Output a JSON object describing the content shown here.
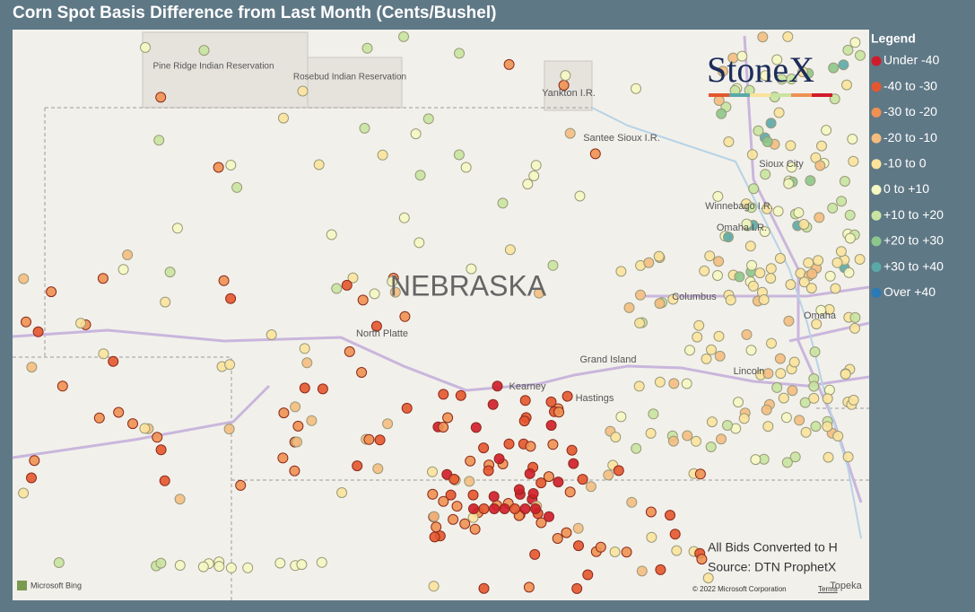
{
  "header": {
    "title": "Corn Spot Basis Difference from Last Month (Cents/Bushel)"
  },
  "map": {
    "labels": [
      {
        "text": "Pine Ridge Indian Reservation"
      },
      {
        "text": "Rosebud Indian Reservation"
      },
      {
        "text": "Yankton I.R."
      },
      {
        "text": "Santee Sioux I.R."
      },
      {
        "text": "Sioux City"
      },
      {
        "text": "Winnebago I.R."
      },
      {
        "text": "Omaha I.R."
      },
      {
        "text": "NEBRASKA"
      },
      {
        "text": "North Platte"
      },
      {
        "text": "Columbus"
      },
      {
        "text": "Omaha"
      },
      {
        "text": "Grand Island"
      },
      {
        "text": "Kearney"
      },
      {
        "text": "Hastings"
      },
      {
        "text": "Lincoln"
      },
      {
        "text": "Topeka"
      }
    ]
  },
  "legend": {
    "title": "Legend",
    "items": [
      {
        "label": "Under -40",
        "color": "#d01c2a"
      },
      {
        "label": "-40 to -30",
        "color": "#e4572e"
      },
      {
        "label": "-30 to -20",
        "color": "#ef9152"
      },
      {
        "label": "-20 to -10",
        "color": "#f4bd7f"
      },
      {
        "label": "-10 to 0",
        "color": "#fbe39c"
      },
      {
        "label": "0 to +10",
        "color": "#f5f8c2"
      },
      {
        "label": "+10 to +20",
        "color": "#c8e4a0"
      },
      {
        "label": "+20 to +30",
        "color": "#8dc78b"
      },
      {
        "label": "+30 to +40",
        "color": "#5aa9a8"
      },
      {
        "label": "Over +40",
        "color": "#2a7ab8"
      }
    ]
  },
  "logo": "StoneX",
  "notes": [
    "All Bids Converted to H",
    "Source: DTN ProphetX"
  ],
  "attribution": {
    "bing": "Microsoft Bing",
    "copyright": "© 2022 Microsoft Corporation",
    "terms": "Terms"
  }
}
